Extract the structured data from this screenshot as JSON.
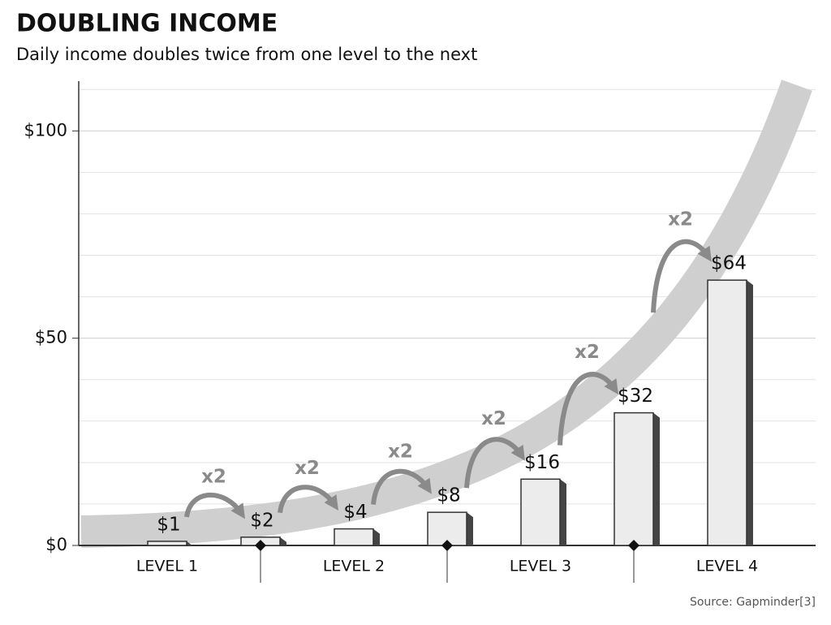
{
  "chart_data": {
    "type": "bar",
    "title": "DOUBLING INCOME",
    "subtitle": "Daily income doubles twice from one level to the next",
    "values": [
      1,
      2,
      4,
      8,
      16,
      32,
      64
    ],
    "value_labels": [
      "$1",
      "$2",
      "$4",
      "$8",
      "$16",
      "$32",
      "$64"
    ],
    "levels": [
      "LEVEL 1",
      "LEVEL 2",
      "LEVEL 3",
      "LEVEL 4"
    ],
    "multipliers": [
      "x2",
      "x2",
      "x2",
      "x2",
      "x2",
      "x2"
    ],
    "ylim": [
      0,
      112
    ],
    "yticks": [
      {
        "value": 0,
        "label": "$0"
      },
      {
        "value": 50,
        "label": "$50"
      },
      {
        "value": 100,
        "label": "$100"
      }
    ],
    "minor_yticks": [
      10,
      20,
      30,
      40,
      60,
      70,
      80,
      90,
      110
    ],
    "grid": true,
    "color": "#ececec",
    "source": "Source: Gapminder[3]"
  }
}
